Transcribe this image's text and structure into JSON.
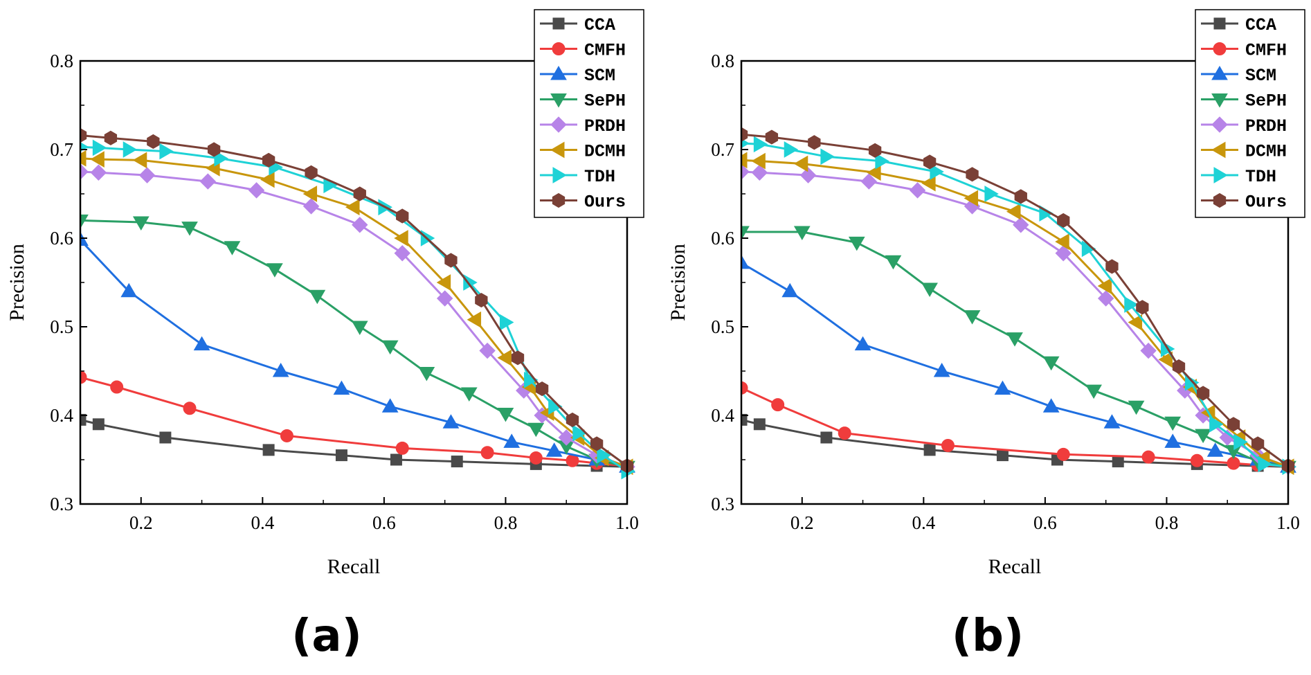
{
  "colors": {
    "CCA": "#4a4a4a",
    "CMFH": "#f03c3c",
    "SCM": "#1f6fe0",
    "SePH": "#2aa066",
    "PRDH": "#b784e8",
    "DCMH": "#c8960c",
    "TDH": "#1ed2d6",
    "Ours": "#7a4036"
  },
  "icons": {
    "CCA": "square",
    "CMFH": "circle",
    "SCM": "triangle-up",
    "SePH": "triangle-down",
    "PRDH": "diamond",
    "DCMH": "triangle-left",
    "TDH": "triangle-right",
    "Ours": "hexagon"
  },
  "chart_data": [
    {
      "type": "line",
      "panel_label": "(a)",
      "xlabel": "Recall",
      "ylabel": "Precision",
      "xlim": [
        0.1,
        1.0
      ],
      "ylim": [
        0.3,
        0.8
      ],
      "xticks": [
        "0.2",
        "0.4",
        "0.6",
        "0.8",
        "1.0"
      ],
      "yticks": [
        "0.3",
        "0.4",
        "0.5",
        "0.6",
        "0.7",
        "0.8"
      ],
      "legend_position": "top-right",
      "series": [
        {
          "name": "CCA",
          "points": [
            [
              0.1,
              0.395
            ],
            [
              0.13,
              0.39
            ],
            [
              0.24,
              0.375
            ],
            [
              0.41,
              0.361
            ],
            [
              0.53,
              0.355
            ],
            [
              0.62,
              0.35
            ],
            [
              0.72,
              0.348
            ],
            [
              0.85,
              0.345
            ],
            [
              0.95,
              0.343
            ],
            [
              1.0,
              0.342
            ]
          ]
        },
        {
          "name": "CMFH",
          "points": [
            [
              0.1,
              0.443
            ],
            [
              0.16,
              0.432
            ],
            [
              0.28,
              0.408
            ],
            [
              0.44,
              0.377
            ],
            [
              0.63,
              0.363
            ],
            [
              0.77,
              0.358
            ],
            [
              0.85,
              0.352
            ],
            [
              0.91,
              0.349
            ],
            [
              0.95,
              0.346
            ],
            [
              1.0,
              0.343
            ]
          ]
        },
        {
          "name": "SCM",
          "points": [
            [
              0.1,
              0.598
            ],
            [
              0.18,
              0.54
            ],
            [
              0.3,
              0.48
            ],
            [
              0.43,
              0.45
            ],
            [
              0.53,
              0.43
            ],
            [
              0.61,
              0.41
            ],
            [
              0.71,
              0.392
            ],
            [
              0.81,
              0.37
            ],
            [
              0.88,
              0.36
            ],
            [
              0.95,
              0.35
            ],
            [
              1.0,
              0.342
            ]
          ]
        },
        {
          "name": "SePH",
          "points": [
            [
              0.1,
              0.62
            ],
            [
              0.2,
              0.618
            ],
            [
              0.28,
              0.612
            ],
            [
              0.35,
              0.59
            ],
            [
              0.42,
              0.565
            ],
            [
              0.49,
              0.535
            ],
            [
              0.56,
              0.5
            ],
            [
              0.61,
              0.478
            ],
            [
              0.67,
              0.448
            ],
            [
              0.74,
              0.425
            ],
            [
              0.8,
              0.402
            ],
            [
              0.85,
              0.385
            ],
            [
              0.9,
              0.365
            ],
            [
              0.95,
              0.35
            ],
            [
              1.0,
              0.342
            ]
          ]
        },
        {
          "name": "PRDH",
          "points": [
            [
              0.1,
              0.675
            ],
            [
              0.13,
              0.674
            ],
            [
              0.21,
              0.671
            ],
            [
              0.31,
              0.664
            ],
            [
              0.39,
              0.654
            ],
            [
              0.48,
              0.636
            ],
            [
              0.56,
              0.615
            ],
            [
              0.63,
              0.583
            ],
            [
              0.7,
              0.532
            ],
            [
              0.77,
              0.473
            ],
            [
              0.83,
              0.428
            ],
            [
              0.86,
              0.4
            ],
            [
              0.9,
              0.375
            ],
            [
              0.95,
              0.355
            ],
            [
              1.0,
              0.342
            ]
          ]
        },
        {
          "name": "DCMH",
          "points": [
            [
              0.1,
              0.69
            ],
            [
              0.13,
              0.689
            ],
            [
              0.2,
              0.688
            ],
            [
              0.32,
              0.679
            ],
            [
              0.41,
              0.666
            ],
            [
              0.48,
              0.65
            ],
            [
              0.55,
              0.635
            ],
            [
              0.63,
              0.6
            ],
            [
              0.7,
              0.55
            ],
            [
              0.75,
              0.508
            ],
            [
              0.8,
              0.465
            ],
            [
              0.84,
              0.432
            ],
            [
              0.87,
              0.403
            ],
            [
              0.92,
              0.375
            ],
            [
              0.96,
              0.352
            ],
            [
              1.0,
              0.342
            ]
          ]
        },
        {
          "name": "TDH",
          "points": [
            [
              0.1,
              0.703
            ],
            [
              0.13,
              0.702
            ],
            [
              0.18,
              0.7
            ],
            [
              0.24,
              0.698
            ],
            [
              0.33,
              0.69
            ],
            [
              0.42,
              0.68
            ],
            [
              0.51,
              0.66
            ],
            [
              0.6,
              0.635
            ],
            [
              0.67,
              0.6
            ],
            [
              0.74,
              0.55
            ],
            [
              0.8,
              0.505
            ],
            [
              0.84,
              0.44
            ],
            [
              0.88,
              0.41
            ],
            [
              0.92,
              0.38
            ],
            [
              0.96,
              0.355
            ],
            [
              1.0,
              0.337
            ]
          ]
        },
        {
          "name": "Ours",
          "points": [
            [
              0.1,
              0.716
            ],
            [
              0.15,
              0.713
            ],
            [
              0.22,
              0.709
            ],
            [
              0.32,
              0.7
            ],
            [
              0.41,
              0.688
            ],
            [
              0.48,
              0.674
            ],
            [
              0.56,
              0.65
            ],
            [
              0.63,
              0.625
            ],
            [
              0.71,
              0.575
            ],
            [
              0.76,
              0.53
            ],
            [
              0.82,
              0.465
            ],
            [
              0.86,
              0.43
            ],
            [
              0.91,
              0.395
            ],
            [
              0.95,
              0.368
            ],
            [
              1.0,
              0.343
            ]
          ]
        }
      ]
    },
    {
      "type": "line",
      "panel_label": "(b)",
      "xlabel": "Recall",
      "ylabel": "Precision",
      "xlim": [
        0.1,
        1.0
      ],
      "ylim": [
        0.3,
        0.8
      ],
      "xticks": [
        "0.2",
        "0.4",
        "0.6",
        "0.8",
        "1.0"
      ],
      "yticks": [
        "0.3",
        "0.4",
        "0.5",
        "0.6",
        "0.7",
        "0.8"
      ],
      "legend_position": "top-right",
      "series": [
        {
          "name": "CCA",
          "points": [
            [
              0.1,
              0.395
            ],
            [
              0.13,
              0.39
            ],
            [
              0.24,
              0.375
            ],
            [
              0.41,
              0.361
            ],
            [
              0.53,
              0.355
            ],
            [
              0.62,
              0.35
            ],
            [
              0.72,
              0.348
            ],
            [
              0.85,
              0.345
            ],
            [
              0.95,
              0.343
            ],
            [
              1.0,
              0.342
            ]
          ]
        },
        {
          "name": "CMFH",
          "points": [
            [
              0.1,
              0.431
            ],
            [
              0.16,
              0.412
            ],
            [
              0.27,
              0.38
            ],
            [
              0.44,
              0.366
            ],
            [
              0.63,
              0.356
            ],
            [
              0.77,
              0.353
            ],
            [
              0.85,
              0.349
            ],
            [
              0.91,
              0.346
            ],
            [
              0.95,
              0.344
            ],
            [
              1.0,
              0.343
            ]
          ]
        },
        {
          "name": "SCM",
          "points": [
            [
              0.1,
              0.572
            ],
            [
              0.18,
              0.54
            ],
            [
              0.3,
              0.48
            ],
            [
              0.43,
              0.45
            ],
            [
              0.53,
              0.43
            ],
            [
              0.61,
              0.41
            ],
            [
              0.71,
              0.392
            ],
            [
              0.81,
              0.37
            ],
            [
              0.88,
              0.36
            ],
            [
              0.95,
              0.35
            ],
            [
              1.0,
              0.342
            ]
          ]
        },
        {
          "name": "SePH",
          "points": [
            [
              0.1,
              0.607
            ],
            [
              0.2,
              0.607
            ],
            [
              0.29,
              0.595
            ],
            [
              0.35,
              0.574
            ],
            [
              0.41,
              0.543
            ],
            [
              0.48,
              0.512
            ],
            [
              0.55,
              0.487
            ],
            [
              0.61,
              0.46
            ],
            [
              0.68,
              0.428
            ],
            [
              0.75,
              0.41
            ],
            [
              0.81,
              0.392
            ],
            [
              0.86,
              0.378
            ],
            [
              0.91,
              0.36
            ],
            [
              0.95,
              0.348
            ],
            [
              1.0,
              0.342
            ]
          ]
        },
        {
          "name": "PRDH",
          "points": [
            [
              0.1,
              0.675
            ],
            [
              0.13,
              0.674
            ],
            [
              0.21,
              0.671
            ],
            [
              0.31,
              0.664
            ],
            [
              0.39,
              0.654
            ],
            [
              0.48,
              0.636
            ],
            [
              0.56,
              0.615
            ],
            [
              0.63,
              0.583
            ],
            [
              0.7,
              0.532
            ],
            [
              0.77,
              0.473
            ],
            [
              0.83,
              0.428
            ],
            [
              0.86,
              0.4
            ],
            [
              0.9,
              0.375
            ],
            [
              0.95,
              0.355
            ],
            [
              1.0,
              0.342
            ]
          ]
        },
        {
          "name": "DCMH",
          "points": [
            [
              0.1,
              0.688
            ],
            [
              0.13,
              0.687
            ],
            [
              0.2,
              0.684
            ],
            [
              0.32,
              0.674
            ],
            [
              0.41,
              0.662
            ],
            [
              0.48,
              0.645
            ],
            [
              0.55,
              0.63
            ],
            [
              0.63,
              0.596
            ],
            [
              0.7,
              0.546
            ],
            [
              0.75,
              0.505
            ],
            [
              0.8,
              0.463
            ],
            [
              0.84,
              0.432
            ],
            [
              0.87,
              0.403
            ],
            [
              0.92,
              0.375
            ],
            [
              0.96,
              0.352
            ],
            [
              1.0,
              0.342
            ]
          ]
        },
        {
          "name": "TDH",
          "points": [
            [
              0.1,
              0.707
            ],
            [
              0.13,
              0.706
            ],
            [
              0.18,
              0.7
            ],
            [
              0.24,
              0.692
            ],
            [
              0.33,
              0.687
            ],
            [
              0.42,
              0.675
            ],
            [
              0.51,
              0.65
            ],
            [
              0.6,
              0.628
            ],
            [
              0.67,
              0.588
            ],
            [
              0.74,
              0.525
            ],
            [
              0.8,
              0.475
            ],
            [
              0.84,
              0.437
            ],
            [
              0.88,
              0.39
            ],
            [
              0.92,
              0.37
            ],
            [
              0.96,
              0.345
            ],
            [
              1.0,
              0.342
            ]
          ]
        },
        {
          "name": "Ours",
          "points": [
            [
              0.1,
              0.717
            ],
            [
              0.15,
              0.714
            ],
            [
              0.22,
              0.708
            ],
            [
              0.32,
              0.699
            ],
            [
              0.41,
              0.686
            ],
            [
              0.48,
              0.672
            ],
            [
              0.56,
              0.647
            ],
            [
              0.63,
              0.62
            ],
            [
              0.71,
              0.568
            ],
            [
              0.76,
              0.522
            ],
            [
              0.82,
              0.455
            ],
            [
              0.86,
              0.425
            ],
            [
              0.91,
              0.39
            ],
            [
              0.95,
              0.368
            ],
            [
              1.0,
              0.343
            ]
          ]
        }
      ]
    }
  ]
}
